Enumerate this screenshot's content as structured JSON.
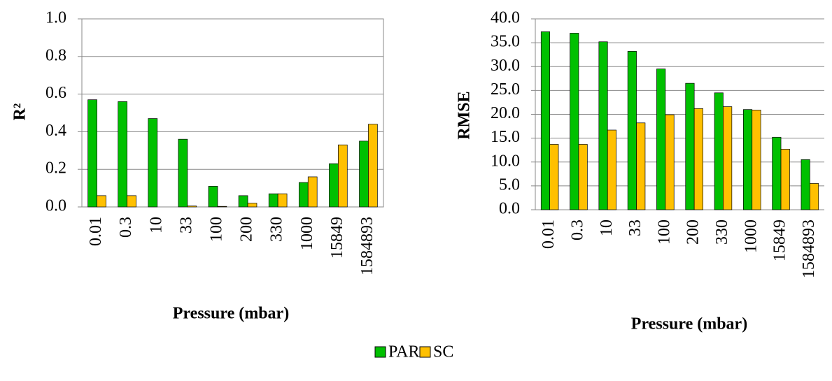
{
  "chart_data": [
    {
      "type": "bar",
      "y_label": "R²",
      "x_label": "Pressure (mbar)",
      "categories": [
        "0.01",
        "0.3",
        "10",
        "33",
        "100",
        "200",
        "330",
        "1000",
        "15849",
        "1584893"
      ],
      "series": [
        {
          "name": "PAR",
          "color": "#00c000",
          "values": [
            0.57,
            0.56,
            0.47,
            0.36,
            0.11,
            0.06,
            0.07,
            0.13,
            0.23,
            0.35
          ]
        },
        {
          "name": "SC",
          "color": "#ffc000",
          "values": [
            0.06,
            0.06,
            0.0,
            0.005,
            0.003,
            0.02,
            0.07,
            0.16,
            0.33,
            0.44
          ]
        }
      ],
      "ylim": [
        0,
        1
      ],
      "yticks": [
        {
          "value": 0,
          "label": "0.0"
        },
        {
          "value": 0.2,
          "label": "0.2"
        },
        {
          "value": 0.4,
          "label": "0.4"
        },
        {
          "value": 0.6,
          "label": "0.6"
        },
        {
          "value": 0.8,
          "label": "0.8"
        },
        {
          "value": 1,
          "label": "1.0"
        }
      ],
      "grid": true
    },
    {
      "type": "bar",
      "y_label": "RMSE",
      "x_label": "Pressure (mbar)",
      "categories": [
        "0.01",
        "0.3",
        "10",
        "33",
        "100",
        "200",
        "330",
        "1000",
        "15849",
        "1584893"
      ],
      "series": [
        {
          "color": "#00c000",
          "values": [
            37.3,
            37.0,
            35.2,
            33.2,
            29.5,
            26.5,
            24.5,
            21.0,
            15.2,
            10.5
          ]
        },
        {
          "color": "#ffc000",
          "values": [
            13.7,
            13.7,
            16.7,
            18.2,
            19.9,
            21.2,
            21.6,
            20.9,
            12.7,
            5.5
          ]
        }
      ],
      "ylim": [
        0,
        40
      ],
      "yticks": [
        {
          "value": 0,
          "label": "0.0"
        },
        {
          "value": 5,
          "label": "5.0"
        },
        {
          "value": 10,
          "label": "10.0"
        },
        {
          "value": 15,
          "label": "15.0"
        },
        {
          "value": 20,
          "label": "20.0"
        },
        {
          "value": 25,
          "label": "25.0"
        },
        {
          "value": 30,
          "label": "30.0"
        },
        {
          "value": 35,
          "label": "35.0"
        },
        {
          "value": 40,
          "label": "40.0"
        }
      ],
      "grid": true
    }
  ]
}
